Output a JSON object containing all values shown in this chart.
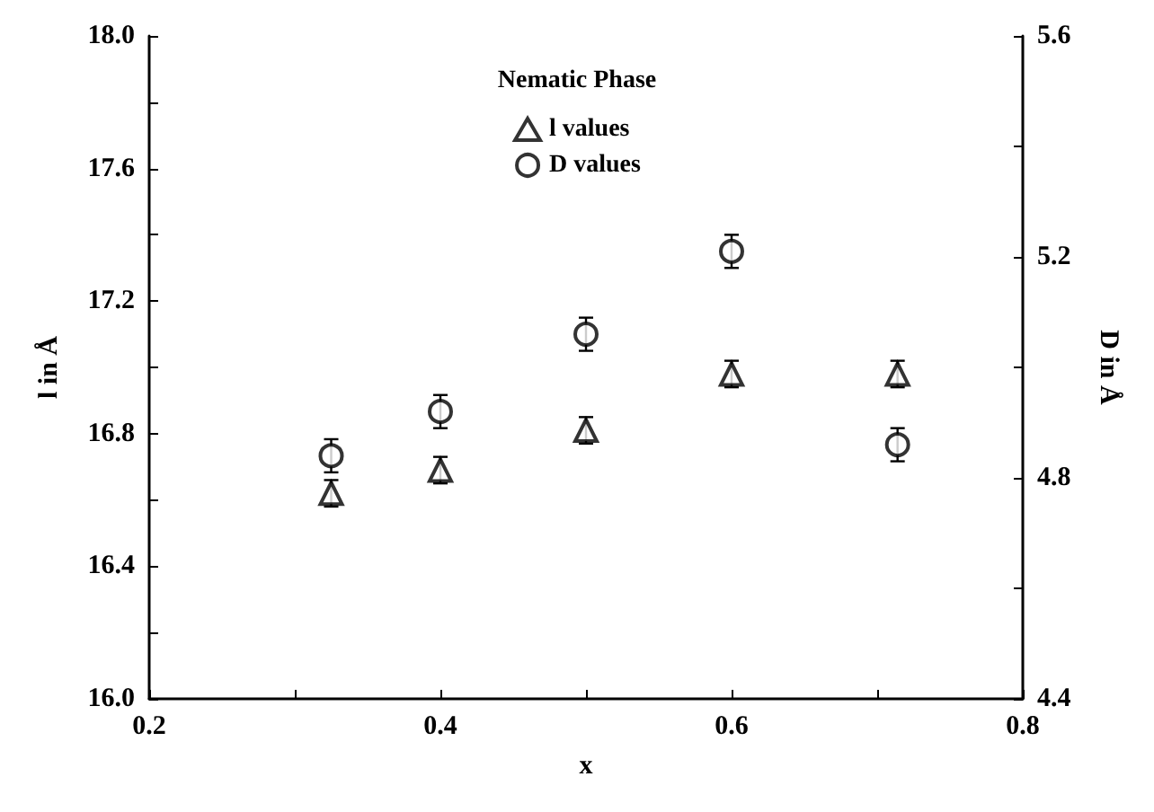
{
  "chart_data": {
    "type": "scatter",
    "xlabel": "x",
    "ylabel": "l in Å",
    "y2label": "D in Å",
    "legend_title": "Nematic Phase",
    "legend": "top",
    "grid": false,
    "xlim": [
      0.2,
      0.8
    ],
    "xticks": [
      {
        "value": 0.2,
        "label": "0.2"
      },
      {
        "value": 0.3,
        "label": null
      },
      {
        "value": 0.4,
        "label": "0.4"
      },
      {
        "value": 0.5,
        "label": null
      },
      {
        "value": 0.6,
        "label": "0.6"
      },
      {
        "value": 0.7,
        "label": null
      },
      {
        "value": 0.8,
        "label": "0.8"
      }
    ],
    "ylim": [
      16,
      18
    ],
    "yticks": [
      {
        "value": 16,
        "label": "16.0"
      },
      {
        "value": 16.2,
        "label": null
      },
      {
        "value": 16.4,
        "label": "16.4"
      },
      {
        "value": 16.6,
        "label": null
      },
      {
        "value": 16.8,
        "label": "16.8"
      },
      {
        "value": 17,
        "label": null
      },
      {
        "value": 17.2,
        "label": "17.2"
      },
      {
        "value": 17.4,
        "label": null
      },
      {
        "value": 17.6,
        "label": "17.6"
      },
      {
        "value": 17.8,
        "label": null
      },
      {
        "value": 18,
        "label": "18.0"
      }
    ],
    "y2lim": [
      4.4,
      5.6
    ],
    "y2ticks": [
      {
        "value": 4.4,
        "label": "4.4"
      },
      {
        "value": 4.6,
        "label": null
      },
      {
        "value": 4.8,
        "label": "4.8"
      },
      {
        "value": 5,
        "label": null
      },
      {
        "value": 5.2,
        "label": "5.2"
      },
      {
        "value": 5.4,
        "label": null
      },
      {
        "value": 5.6,
        "label": "5.6"
      }
    ],
    "x": [
      0.325,
      0.4,
      0.5,
      0.6,
      0.714
    ],
    "series": [
      {
        "name": "l values",
        "color": "#000000",
        "marker": "triangle",
        "values": [
          16.62,
          16.69,
          16.81,
          16.98,
          16.98
        ],
        "errors": [
          0.04,
          0.04,
          0.04,
          0.04,
          0.04
        ]
      },
      {
        "name": "D values",
        "color": "#000000",
        "marker": "circle",
        "axis": "y2",
        "values": [
          4.84,
          4.92,
          5.06,
          5.21,
          4.86
        ],
        "errors": [
          0.03,
          0.03,
          0.03,
          0.03,
          0.03
        ]
      }
    ]
  }
}
